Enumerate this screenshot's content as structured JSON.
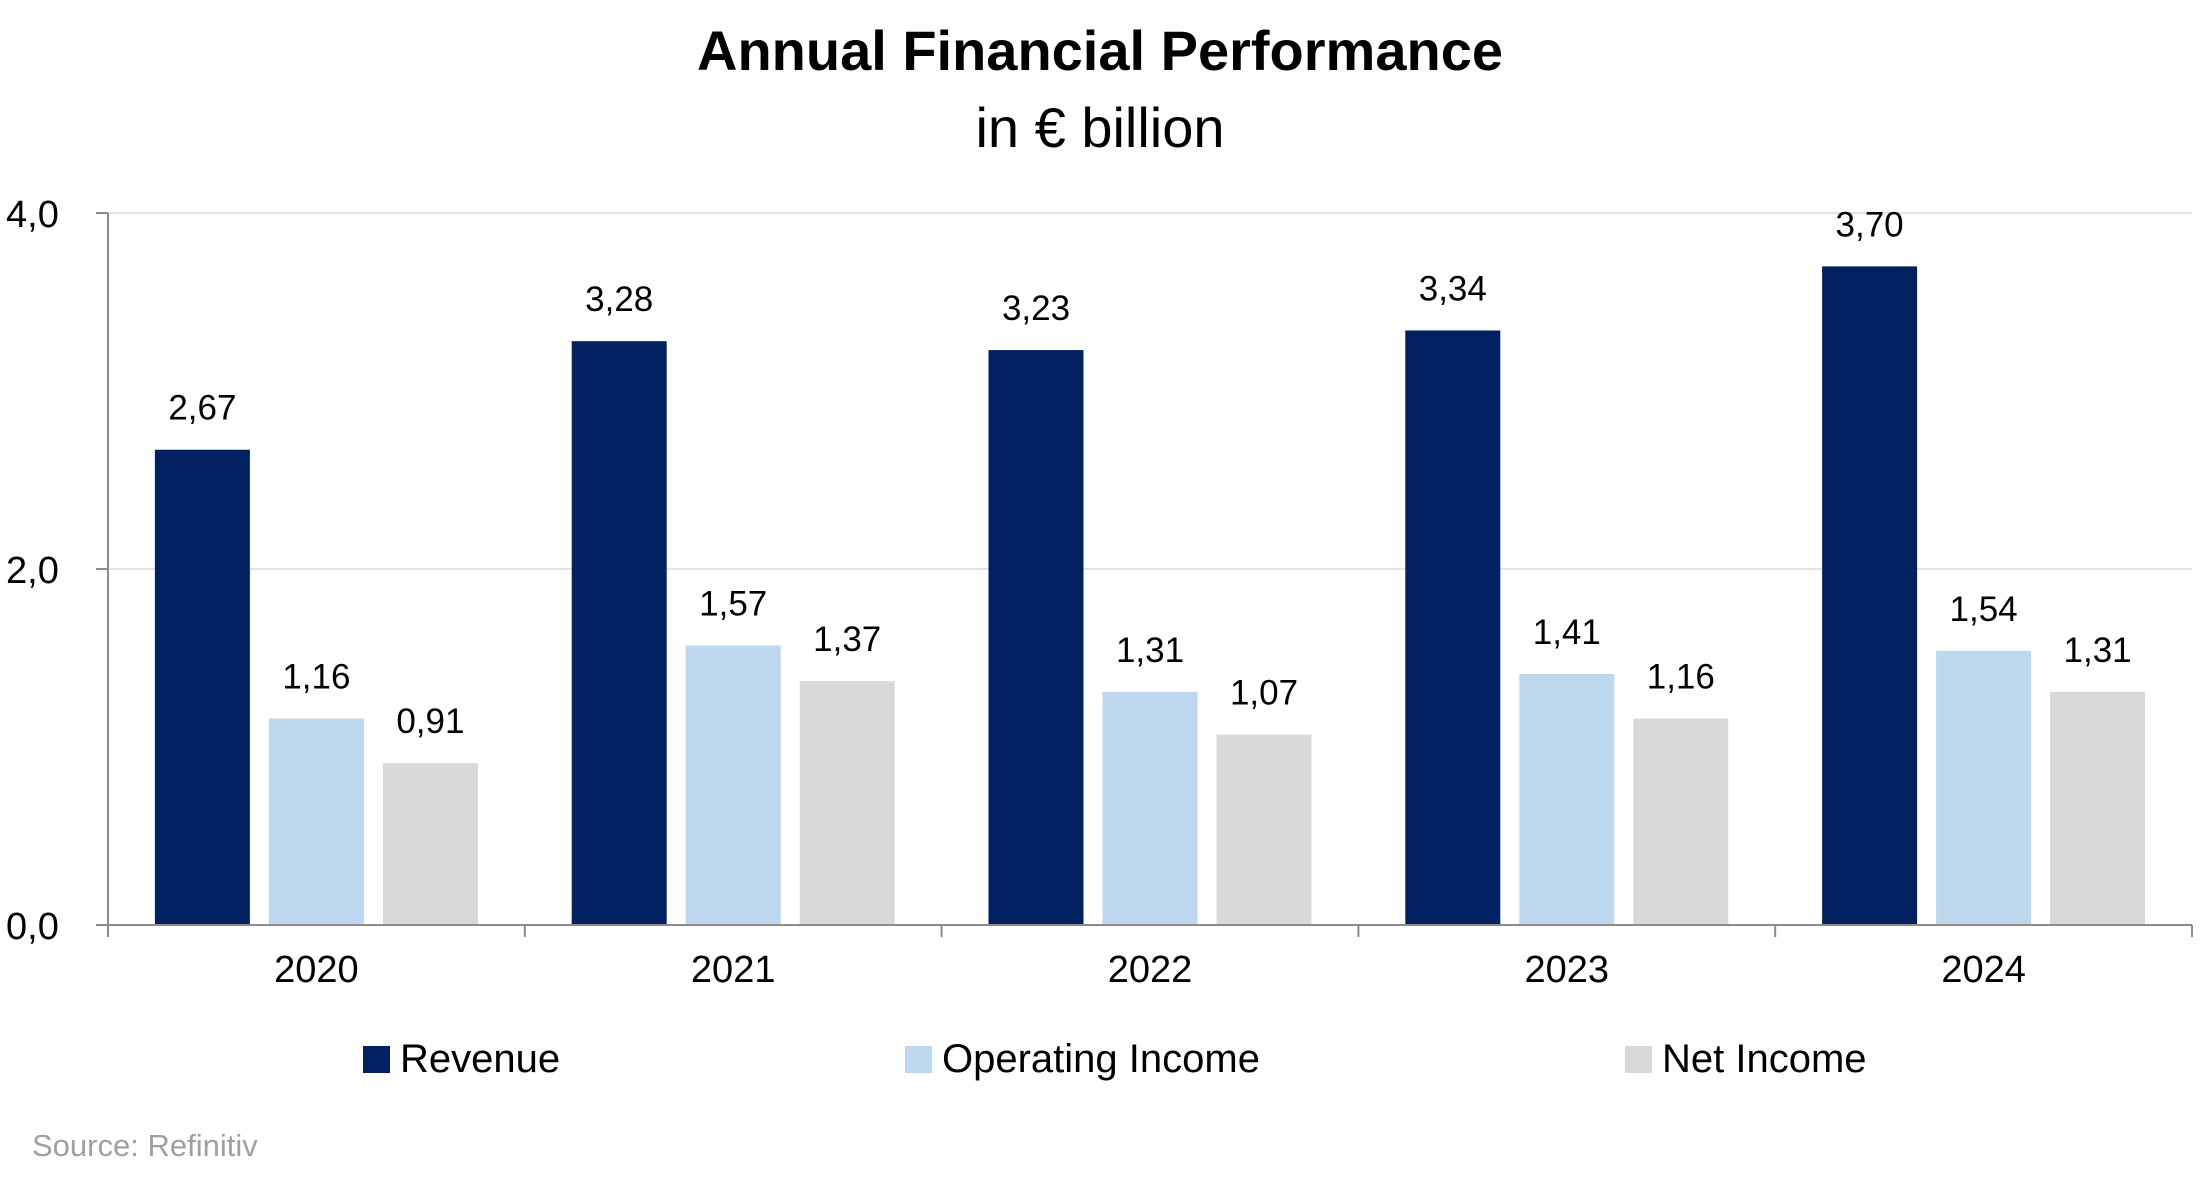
{
  "chart_data": {
    "type": "bar",
    "title": "Annual Financial Performance",
    "subtitle": "in € billion",
    "categories": [
      "2020",
      "2021",
      "2022",
      "2023",
      "2024"
    ],
    "series": [
      {
        "name": "Revenue",
        "color": "#022161",
        "values": [
          2.67,
          3.28,
          3.23,
          3.34,
          3.7
        ],
        "labels": [
          "2,67",
          "3,28",
          "3,23",
          "3,34",
          "3,70"
        ]
      },
      {
        "name": "Operating Income",
        "color": "#bdd7ee",
        "values": [
          1.16,
          1.57,
          1.31,
          1.41,
          1.54
        ],
        "labels": [
          "1,16",
          "1,57",
          "1,31",
          "1,41",
          "1,54"
        ]
      },
      {
        "name": "Net Income",
        "color": "#d9d9d9",
        "values": [
          0.91,
          1.37,
          1.07,
          1.16,
          1.31
        ],
        "labels": [
          "0,91",
          "1,37",
          "1,07",
          "1,16",
          "1,31"
        ]
      }
    ],
    "ylim": [
      0,
      4
    ],
    "yticks": [
      0,
      2,
      4
    ],
    "ytick_labels": [
      "0,0",
      "2,0",
      "4,0"
    ],
    "grid": true,
    "legend_position": "bottom",
    "xlabel": "",
    "ylabel": ""
  },
  "source": "Source: Refinitiv"
}
